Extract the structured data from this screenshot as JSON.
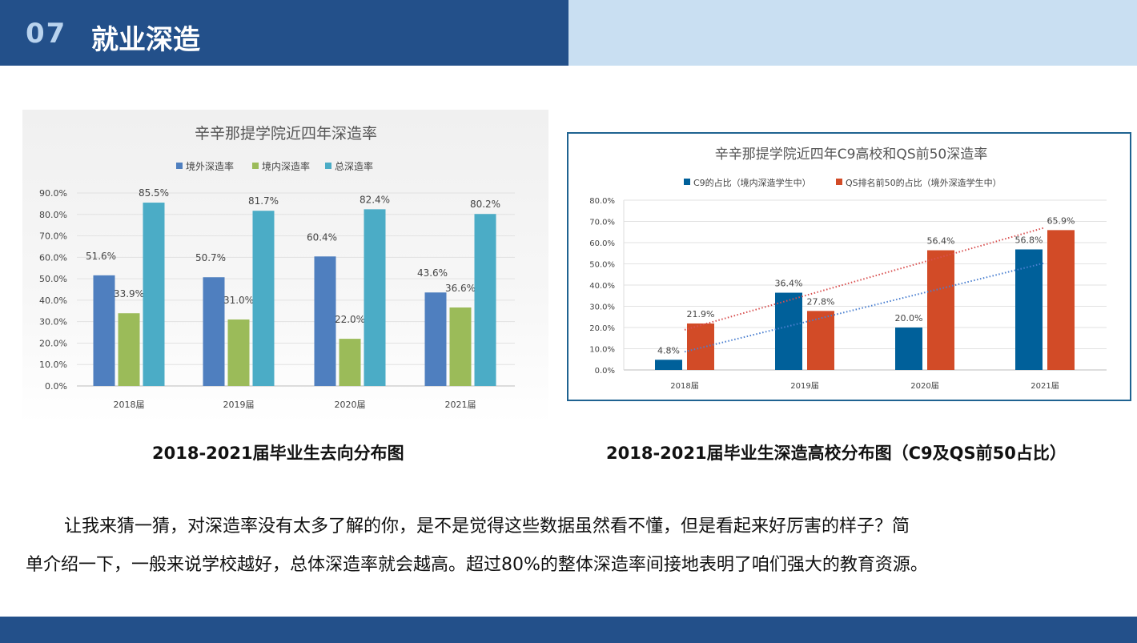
{
  "header": {
    "number": "07",
    "title": "就业深造"
  },
  "captions": {
    "left": "2018-2021届毕业生去向分布图",
    "right": "2018-2021届毕业生深造高校分布图（C9及QS前50占比）"
  },
  "paragraph": {
    "line1": "让我来猜一猜，对深造率没有太多了解的你，是不是觉得这些数据虽然看不懂，但是看起来好厉害的样子？简",
    "line2": "单介绍一下，一般来说学校越好，总体深造率就会越高。超过80%的整体深造率间接地表明了咱们强大的教育资源。"
  },
  "chart_data": [
    {
      "type": "bar",
      "title": "辛辛那提学院近四年深造率",
      "categories": [
        "2018届",
        "2019届",
        "2020届",
        "2021届"
      ],
      "series": [
        {
          "name": "境外深造率",
          "color": "#4f7fbf",
          "values": [
            51.6,
            50.7,
            60.4,
            43.6
          ]
        },
        {
          "name": "境内深造率",
          "color": "#9bbb59",
          "values": [
            33.9,
            31.0,
            22.0,
            36.6
          ]
        },
        {
          "name": "总深造率",
          "color": "#4bacc6",
          "values": [
            85.5,
            81.7,
            82.4,
            80.2
          ]
        }
      ],
      "yticks": [
        "0.0%",
        "10.0%",
        "20.0%",
        "30.0%",
        "40.0%",
        "50.0%",
        "60.0%",
        "70.0%",
        "80.0%",
        "90.0%"
      ],
      "ylim": [
        0,
        90
      ],
      "legend": "top"
    },
    {
      "type": "bar",
      "title": "辛辛那提学院近四年C9高校和QS前50深造率",
      "categories": [
        "2018届",
        "2019届",
        "2020届",
        "2021届"
      ],
      "series": [
        {
          "name": "C9的占比（境内深造学生中）",
          "color": "#00609a",
          "values": [
            4.8,
            36.4,
            20.0,
            56.8
          ]
        },
        {
          "name": "QS排名前50的占比（境外深造学生中）",
          "color": "#d24b27",
          "values": [
            21.9,
            27.8,
            56.4,
            65.9
          ]
        }
      ],
      "trendlines": [
        {
          "series": "C9的占比（境内深造学生中）",
          "color": "#4a7fd0",
          "style": "dotted"
        },
        {
          "series": "QS排名前50的占比（境外深造学生中）",
          "color": "#d85050",
          "style": "dotted"
        }
      ],
      "yticks": [
        "0.0%",
        "10.0%",
        "20.0%",
        "30.0%",
        "40.0%",
        "50.0%",
        "60.0%",
        "70.0%",
        "80.0%"
      ],
      "ylim": [
        0,
        80
      ],
      "legend": "top"
    }
  ]
}
